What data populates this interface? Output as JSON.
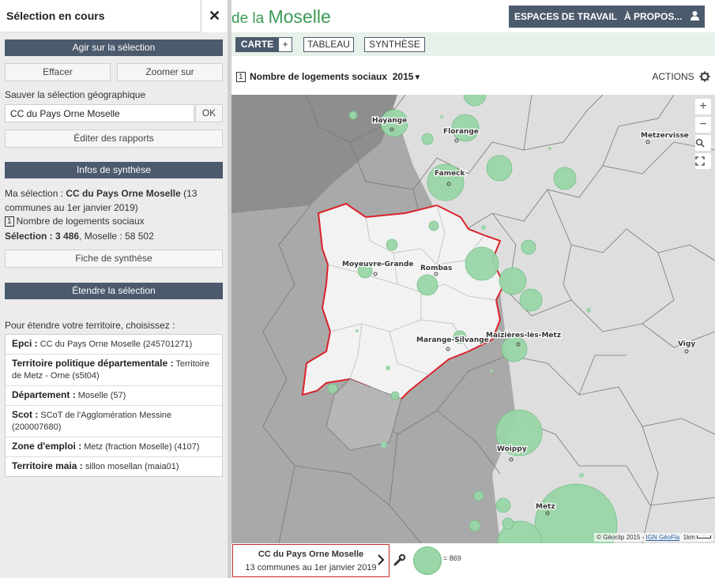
{
  "sidebar": {
    "title": "Sélection en cours",
    "close_glyph": "✕",
    "act_header": "Agir sur la sélection",
    "clear_label": "Effacer",
    "zoom_label": "Zoomer sur",
    "save_label": "Sauver la sélection géographique",
    "save_value": "CC du Pays Orne Moselle",
    "ok_label": "OK",
    "edit_reports_label": "Éditer des rapports",
    "synth_header": "Infos de synthèse",
    "my_selection_prefix": "Ma sélection : ",
    "my_selection_name": "CC du Pays Orne Moselle",
    "my_selection_suffix": " (13 communes au 1er janvier 2019)",
    "indicator_number": "1",
    "indicator_name": "Nombre de logements sociaux",
    "selection_value_label": "Sélection : 3 486",
    "moselle_value": ", Moselle : 58 502",
    "synth_card_label": "Fiche de synthèse",
    "extend_header": "Étendre la sélection",
    "extend_prompt": "Pour étendre votre territoire, choisissez :",
    "territories": [
      {
        "label": "Epci :",
        "value": "CC du Pays Orne Moselle (245701271)"
      },
      {
        "label": "Territoire politique départementale :",
        "value": "Territoire de Metz - Orne (s5t04)"
      },
      {
        "label": "Département :",
        "value": "Moselle (57)"
      },
      {
        "label": "Scot :",
        "value": "SCoT de l'Agglomération Messine (200007680)"
      },
      {
        "label": "Zone d'emploi :",
        "value": "Metz (fraction Moselle) (4107)"
      },
      {
        "label": "Territoire maia :",
        "value": "sillon mosellan (maia01)"
      }
    ]
  },
  "header": {
    "brand_prefix": "de la ",
    "brand_name": "Moselle",
    "workspaces_label": "ESPACES DE TRAVAIL",
    "about_label": "À PROPOS...",
    "user_icon": "user-icon"
  },
  "tabs": {
    "map": "CARTE",
    "add": "+",
    "table": "TABLEAU",
    "synthesis": "SYNTHÈSE"
  },
  "indicator": {
    "number": "1",
    "label": "Nombre de logements sociaux",
    "year": "2015",
    "actions_label": "ACTIONS"
  },
  "map": {
    "places": [
      "Hayange",
      "Florange",
      "Metzervisse",
      "Fameck",
      "Moyeuvre-Grande",
      "Rombas",
      "Marange-Silvange",
      "Maizières-lès-Metz",
      "Vigy",
      "Woippy",
      "Metz"
    ],
    "zoom_in": "+",
    "zoom_out": "−",
    "attribution_prefix": "© Géoclip 2015 - ",
    "attribution_link": "IGN GéoFla",
    "scale_label": "1km",
    "bubble_color": "#9ad6a8",
    "selection_outline": "#d9232a"
  },
  "footer": {
    "selection_title": "CC du Pays Orne Moselle",
    "selection_sub": "13 communes au 1er janvier 2019",
    "legend_value": "= 869"
  }
}
